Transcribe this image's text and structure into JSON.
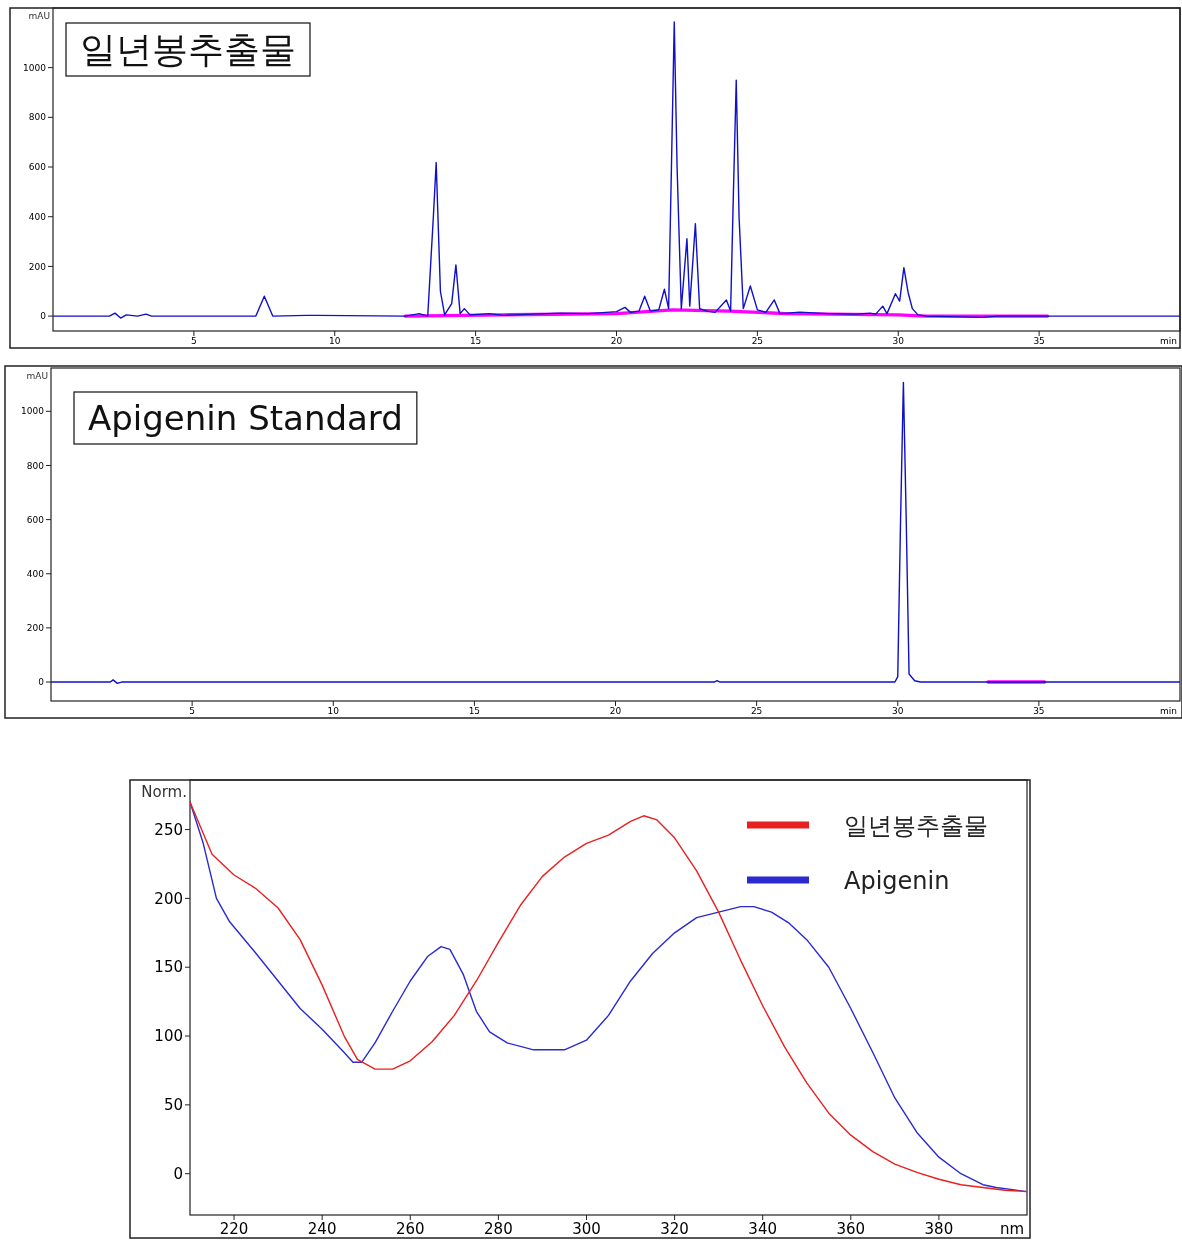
{
  "chart_data": [
    {
      "type": "line",
      "title": "일년봉추출물",
      "xlabel": "min",
      "ylabel": "mAU",
      "xlim": [
        0,
        40
      ],
      "ylim": [
        -60,
        1240
      ],
      "xticks": [
        5,
        10,
        15,
        20,
        25,
        30,
        35
      ],
      "yticks": [
        0,
        200,
        400,
        600,
        800,
        1000
      ],
      "series": [
        {
          "color": "#1010c8",
          "x": [
            0,
            2.0,
            2.2,
            2.4,
            2.6,
            3.0,
            3.3,
            3.5,
            7.2,
            7.5,
            7.8,
            9.0,
            9.4,
            12.5,
            13.0,
            13.3,
            13.5,
            13.6,
            13.75,
            13.9,
            14.15,
            14.3,
            14.45,
            14.6,
            14.8,
            15.5,
            16,
            17,
            18,
            19,
            20,
            20.3,
            20.5,
            20.8,
            21.0,
            21.2,
            21.5,
            21.7,
            21.85,
            21.95,
            22.05,
            22.15,
            22.3,
            22.5,
            22.6,
            22.8,
            22.95,
            23.2,
            23.5,
            23.9,
            24.05,
            24.15,
            24.25,
            24.35,
            24.5,
            24.75,
            25.0,
            25.3,
            25.6,
            25.8,
            26.5,
            27.5,
            28.5,
            29.0,
            29.2,
            29.45,
            29.6,
            29.9,
            30.05,
            30.2,
            30.35,
            30.5,
            30.7,
            31,
            33,
            33.5,
            40
          ],
          "values": [
            0,
            0,
            12,
            -8,
            5,
            0,
            8,
            0,
            0,
            80,
            0,
            3,
            3,
            0,
            10,
            0,
            400,
            618,
            100,
            5,
            50,
            206,
            10,
            30,
            5,
            10,
            3,
            8,
            12,
            10,
            18,
            35,
            15,
            20,
            80,
            20,
            25,
            108,
            30,
            600,
            1184,
            600,
            30,
            311,
            40,
            372,
            30,
            20,
            15,
            65,
            20,
            500,
            949,
            400,
            30,
            121,
            25,
            15,
            65,
            10,
            16,
            10,
            8,
            12,
            8,
            40,
            10,
            90,
            60,
            195,
            95,
            30,
            5,
            0,
            -5,
            0,
            0
          ]
        },
        {
          "color": "#ff00ff",
          "x": [
            12.5,
            16,
            20,
            22,
            24,
            26,
            30,
            31,
            35.3
          ],
          "values": [
            0,
            5,
            10,
            25,
            20,
            10,
            5,
            0,
            0
          ]
        }
      ]
    },
    {
      "type": "line",
      "title": "Apigenin Standard",
      "xlabel": "min",
      "ylabel": "mAU",
      "xlim": [
        0,
        40
      ],
      "ylim": [
        -70,
        1160
      ],
      "xticks": [
        5,
        10,
        15,
        20,
        25,
        30,
        35
      ],
      "yticks": [
        0,
        200,
        400,
        600,
        800,
        1000
      ],
      "series": [
        {
          "color": "#1010c8",
          "x": [
            0,
            2.1,
            2.2,
            2.35,
            2.5,
            23.5,
            23.6,
            23.7,
            29.9,
            30.0,
            30.1,
            30.2,
            30.3,
            30.4,
            30.6,
            30.8,
            40
          ],
          "values": [
            0,
            0,
            8,
            -5,
            0,
            0,
            5,
            0,
            0,
            20,
            600,
            1107,
            600,
            30,
            5,
            0,
            0
          ]
        },
        {
          "color": "#ff00ff",
          "x": [
            33.2,
            35.2
          ],
          "values": [
            0,
            0
          ]
        }
      ]
    },
    {
      "type": "line",
      "xlabel": "nm",
      "ylabel": "Norm.",
      "xlim": [
        210,
        400
      ],
      "ylim": [
        -30,
        286
      ],
      "xticks": [
        220,
        240,
        260,
        280,
        300,
        320,
        340,
        360,
        380
      ],
      "yticks": [
        0,
        50,
        100,
        150,
        200,
        250
      ],
      "legend": "top right",
      "series": [
        {
          "name": "일년봉추출물",
          "color": "#e82020",
          "x": [
            210,
            215,
            220,
            225,
            230,
            235,
            240,
            245,
            248,
            252,
            256,
            260,
            265,
            270,
            275,
            280,
            285,
            290,
            295,
            300,
            305,
            310,
            313,
            316,
            320,
            325,
            330,
            335,
            340,
            345,
            350,
            355,
            360,
            365,
            370,
            375,
            380,
            385,
            390,
            395,
            400
          ],
          "values": [
            270,
            232,
            217,
            207,
            193,
            170,
            137,
            100,
            83,
            76,
            76,
            82,
            96,
            115,
            140,
            168,
            195,
            216,
            230,
            240,
            246,
            256,
            260,
            257,
            244,
            220,
            190,
            155,
            122,
            92,
            66,
            44,
            28,
            16,
            7,
            1,
            -4,
            -8,
            -10,
            -12,
            -13
          ]
        },
        {
          "name": "Apigenin",
          "color": "#2a2ad0",
          "x": [
            210,
            213,
            216,
            219,
            225,
            230,
            235,
            240,
            245,
            247,
            249,
            252,
            256,
            260,
            264,
            267,
            269,
            272,
            275,
            278,
            282,
            288,
            295,
            300,
            305,
            310,
            315,
            320,
            325,
            330,
            335,
            338,
            342,
            346,
            350,
            355,
            360,
            365,
            370,
            375,
            380,
            385,
            390,
            393,
            400
          ],
          "values": [
            270,
            240,
            200,
            183,
            160,
            140,
            120,
            105,
            88,
            81,
            81,
            95,
            118,
            140,
            158,
            165,
            163,
            145,
            118,
            103,
            95,
            90,
            90,
            97,
            115,
            140,
            160,
            175,
            186,
            190,
            194,
            194,
            190,
            182,
            170,
            150,
            120,
            88,
            55,
            30,
            12,
            0,
            -8,
            -10,
            -13
          ]
        }
      ]
    }
  ]
}
